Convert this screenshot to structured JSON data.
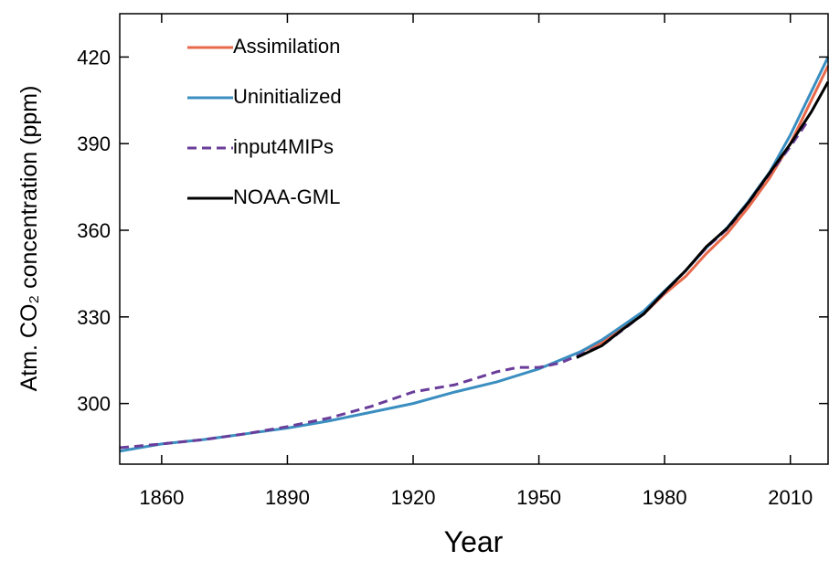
{
  "chart_data": {
    "type": "line",
    "x_label": "Year",
    "y_label": "Atm. CO₂ concentration (ppm)",
    "xlim": [
      1850,
      2019
    ],
    "ylim": [
      279,
      435
    ],
    "xticks": [
      1860,
      1890,
      1920,
      1950,
      1980,
      2010
    ],
    "yticks": [
      300,
      330,
      360,
      390,
      420
    ],
    "grid": false,
    "legend": "upper left",
    "series": [
      {
        "name": "Assimilation",
        "color": "#e8694a",
        "linestyle": "solid",
        "x": [
          1960,
          1965,
          1970,
          1975,
          1980,
          1985,
          1990,
          1995,
          2000,
          2005,
          2010,
          2015,
          2019
        ],
        "values": [
          318,
          321,
          326,
          331,
          338,
          344,
          352,
          359,
          368,
          378,
          390,
          405,
          417
        ]
      },
      {
        "name": "Uninitialized",
        "color": "#3a8ec0",
        "linestyle": "solid",
        "x": [
          1850,
          1860,
          1870,
          1880,
          1890,
          1900,
          1910,
          1920,
          1930,
          1940,
          1950,
          1960,
          1965,
          1970,
          1975,
          1980,
          1985,
          1990,
          1995,
          2000,
          2005,
          2010,
          2015,
          2019
        ],
        "values": [
          283.5,
          286,
          287.5,
          289.5,
          291.5,
          294,
          297,
          300,
          304,
          307.5,
          312,
          318,
          322,
          327,
          332,
          339,
          346,
          354,
          361,
          370,
          380,
          393,
          408,
          420
        ]
      },
      {
        "name": "input4MIPs",
        "color": "#6a3d9a",
        "linestyle": "dashed",
        "x": [
          1850,
          1860,
          1870,
          1880,
          1890,
          1900,
          1910,
          1920,
          1930,
          1940,
          1945,
          1950,
          1955,
          1960,
          1965,
          1970,
          1975,
          1980,
          1985,
          1990,
          1995,
          2000,
          2005,
          2010,
          2014
        ],
        "values": [
          284.7,
          286,
          287.5,
          289.5,
          292,
          295,
          299,
          304,
          306.5,
          311,
          312.5,
          312.5,
          314,
          317,
          320,
          325.5,
          331,
          338.5,
          346,
          354,
          360.5,
          369.5,
          379.5,
          389,
          397.5
        ]
      },
      {
        "name": "NOAA-GML",
        "color": "#000000",
        "linestyle": "solid",
        "x": [
          1959,
          1965,
          1970,
          1975,
          1980,
          1985,
          1990,
          1995,
          2000,
          2005,
          2010,
          2015,
          2019
        ],
        "values": [
          315.9,
          320,
          325.7,
          331,
          338.7,
          346,
          354.4,
          360.8,
          369.6,
          379.8,
          389.9,
          401,
          411.4
        ]
      }
    ]
  }
}
